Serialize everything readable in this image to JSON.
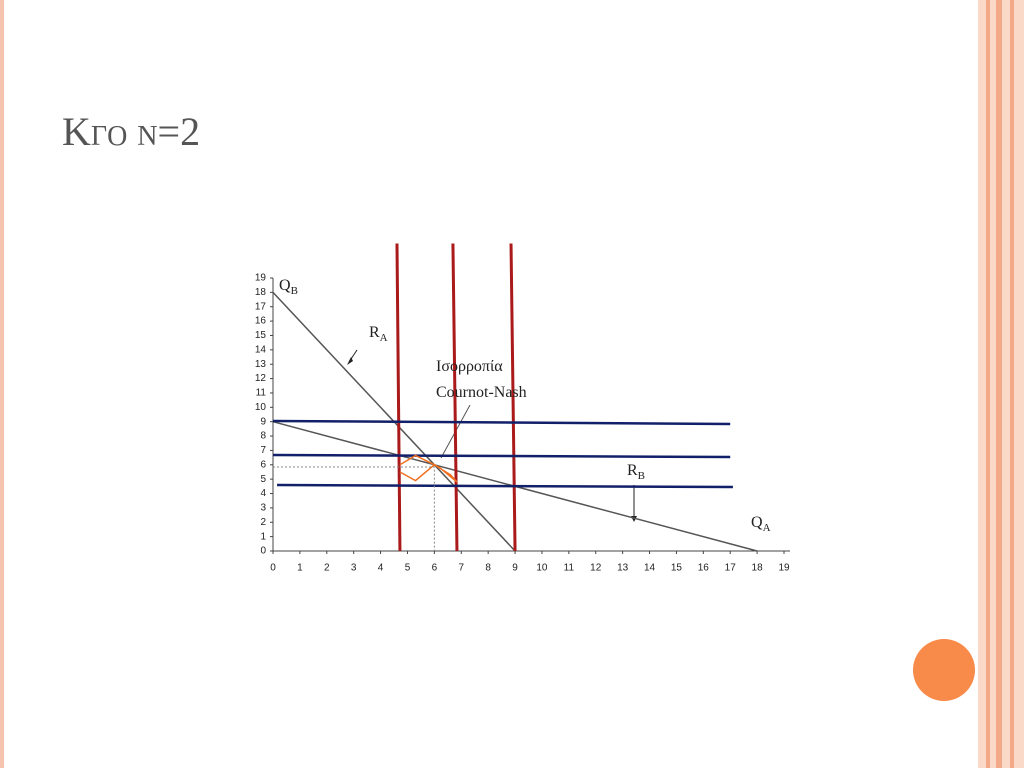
{
  "header": {
    "title": "Κγο ν=2"
  },
  "chart_data": {
    "type": "line",
    "xlim": [
      0,
      19
    ],
    "ylim": [
      0,
      19
    ],
    "xticks": [
      0,
      1,
      2,
      3,
      4,
      5,
      6,
      7,
      8,
      9,
      10,
      11,
      12,
      13,
      14,
      15,
      16,
      17,
      18,
      19
    ],
    "yticks": [
      0,
      1,
      2,
      3,
      4,
      5,
      6,
      7,
      8,
      9,
      10,
      11,
      12,
      13,
      14,
      15,
      16,
      17,
      18,
      19
    ],
    "series": [
      {
        "color": "#555555",
        "width": 1.5,
        "x": [
          0,
          9
        ],
        "values": [
          18,
          0
        ]
      },
      {
        "color": "#555555",
        "width": 1.5,
        "x": [
          0,
          18
        ],
        "values": [
          9,
          0
        ]
      },
      {
        "color": "#aa1a1a",
        "width": 3,
        "x": [
          4.72,
          4.61
        ],
        "values": [
          0,
          21.4
        ]
      },
      {
        "color": "#aa1a1a",
        "width": 3,
        "x": [
          6.84,
          6.69
        ],
        "values": [
          0,
          21.4
        ]
      },
      {
        "color": "#aa1a1a",
        "width": 3,
        "x": [
          9.0,
          8.85
        ],
        "values": [
          0,
          21.4
        ]
      },
      {
        "color": "#12206a",
        "width": 2.5,
        "x": [
          0,
          17
        ],
        "values": [
          9.05,
          8.84
        ]
      },
      {
        "color": "#12206a",
        "width": 2.5,
        "x": [
          0,
          17
        ],
        "values": [
          6.68,
          6.54
        ]
      },
      {
        "color": "#12206a",
        "width": 2.5,
        "x": [
          0.15,
          17.1
        ],
        "values": [
          4.59,
          4.45
        ]
      },
      {
        "color": "#f07020",
        "width": 1.5,
        "x": [
          4.72,
          5.3,
          6.0,
          6.6,
          6.84,
          6.2,
          6.0,
          5.3,
          4.72
        ],
        "values": [
          6.0,
          6.65,
          6.0,
          5.3,
          4.8,
          5.8,
          6.0,
          4.9,
          5.5
        ]
      },
      {
        "color": "#888888",
        "width": 1,
        "dash": true,
        "x": [
          0,
          6,
          6
        ],
        "values": [
          5.85,
          5.85,
          0
        ]
      }
    ],
    "annotations": [
      {
        "text": "Q",
        "sub": "B"
      },
      {
        "text": "R",
        "sub": "A"
      },
      {
        "text": "Ισορροπία"
      },
      {
        "text": "Cournot-Nash"
      },
      {
        "text": "R",
        "sub": "B"
      },
      {
        "text": "Q",
        "sub": "A"
      }
    ]
  }
}
